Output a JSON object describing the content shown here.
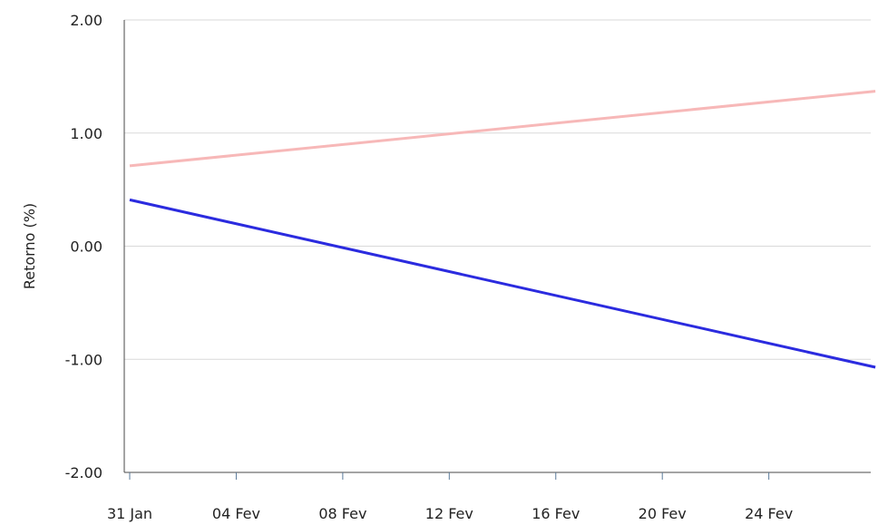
{
  "chart_data": {
    "type": "line",
    "title": "",
    "xlabel": "",
    "ylabel": "Retorno (%)",
    "x_ticks": [
      "31 Jan",
      "04 Fev",
      "08 Fev",
      "12 Fev",
      "16 Fev",
      "20 Fev",
      "24 Fev"
    ],
    "y_ticks": [
      "2.00",
      "1.00",
      "0.00",
      "-1.00",
      "-2.00"
    ],
    "ylim": [
      -2,
      2
    ],
    "x_start": "31 Jan",
    "x_end": "28 Fev",
    "grid": true,
    "legend": "none",
    "series": [
      {
        "color": "#f7b8b8",
        "x": [
          "31 Jan",
          "28 Fev"
        ],
        "values": [
          0.71,
          1.37
        ]
      },
      {
        "color": "#2b2bdf",
        "x": [
          "31 Jan",
          "28 Fev"
        ],
        "values": [
          0.41,
          -1.07
        ]
      }
    ]
  }
}
